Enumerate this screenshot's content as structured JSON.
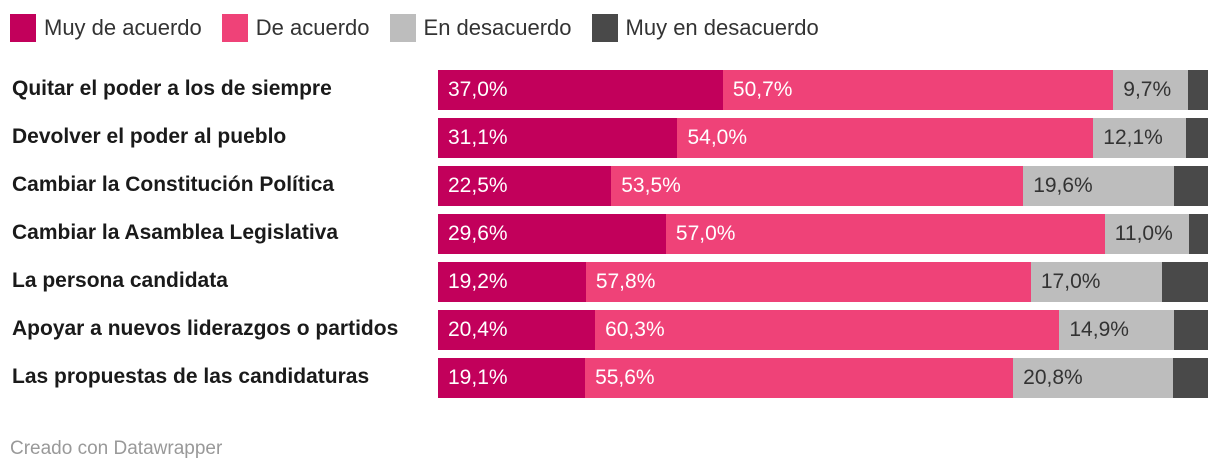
{
  "chart_data": {
    "type": "bar",
    "orientation": "horizontal",
    "stacked": true,
    "categories": [
      "Quitar el poder a los de siempre",
      "Devolver el poder al pueblo",
      "Cambiar la Constitución Política",
      "Cambiar la Asamblea Legislativa",
      "La persona candidata",
      "Apoyar a nuevos liderazgos o partidos",
      "Las propuestas de las candidaturas"
    ],
    "series": [
      {
        "name": "Muy de acuerdo",
        "color": "#c2005b",
        "values": [
          37.0,
          31.1,
          22.5,
          29.6,
          19.2,
          20.4,
          19.1
        ],
        "labels": [
          "37,0%",
          "31,1%",
          "22,5%",
          "29,6%",
          "19,2%",
          "20,4%",
          "19,1%"
        ]
      },
      {
        "name": "De acuerdo",
        "color": "#ef4278",
        "values": [
          50.7,
          54.0,
          53.5,
          57.0,
          57.8,
          60.3,
          55.6
        ],
        "labels": [
          "50,7%",
          "54,0%",
          "53,5%",
          "57,0%",
          "57,8%",
          "60,3%",
          "55,6%"
        ]
      },
      {
        "name": "En desacuerdo",
        "color": "#bdbdbd",
        "values": [
          9.7,
          12.1,
          19.6,
          11.0,
          17.0,
          14.9,
          20.8
        ],
        "labels": [
          "9,7%",
          "12,1%",
          "19,6%",
          "11,0%",
          "17,0%",
          "14,9%",
          "20,8%"
        ]
      },
      {
        "name": "Muy en desacuerdo",
        "color": "#494949",
        "values": [
          2.6,
          2.8,
          4.4,
          2.4,
          6.0,
          4.4,
          4.5
        ],
        "labels": [
          "",
          "",
          "",
          "",
          "",
          "",
          ""
        ]
      }
    ],
    "xlim": [
      0,
      100
    ],
    "legend_position": "top-left",
    "title": "",
    "xlabel": "",
    "ylabel": ""
  },
  "footer": {
    "credit": "Creado con Datawrapper"
  }
}
